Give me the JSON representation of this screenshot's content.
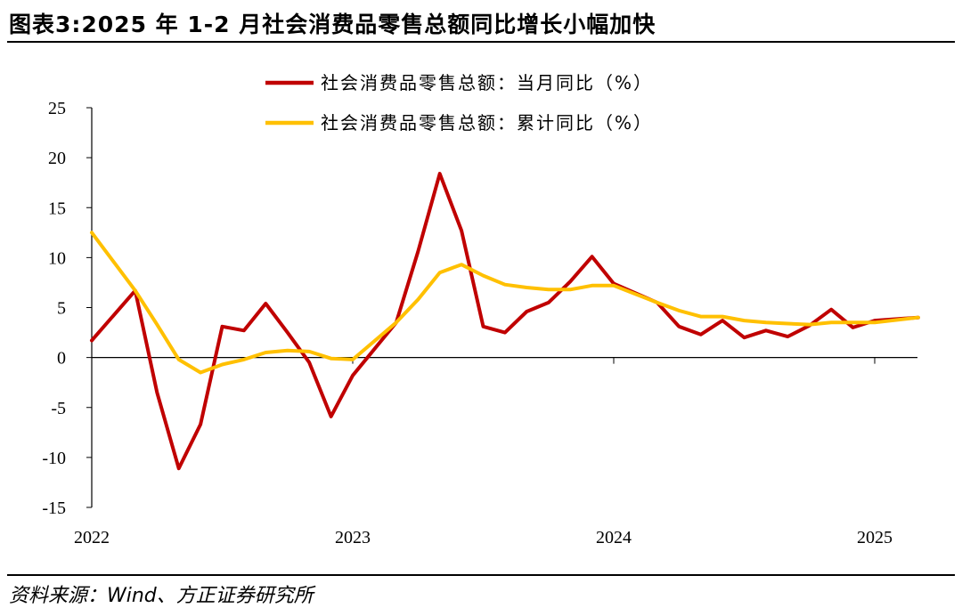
{
  "figure": {
    "title": "图表3:2025 年 1-2 月社会消费品零售总额同比增长小幅加快",
    "source": "资料来源：Wind、方正证券研究所"
  },
  "chart_data": {
    "type": "line",
    "title": "",
    "xlabel": "",
    "ylabel": "",
    "ylim": [
      -15,
      25
    ],
    "yticks": [
      25,
      20,
      15,
      10,
      5,
      0,
      -5,
      -10,
      -15
    ],
    "xticks": [
      "2022",
      "2023",
      "2024",
      "2025"
    ],
    "grid": false,
    "legend_position": "top-center",
    "x": [
      "2022-01",
      "2022-03",
      "2022-04",
      "2022-05",
      "2022-06",
      "2022-07",
      "2022-08",
      "2022-09",
      "2022-10",
      "2022-11",
      "2022-12",
      "2023-01",
      "2023-03",
      "2023-04",
      "2023-05",
      "2023-06",
      "2023-07",
      "2023-08",
      "2023-09",
      "2023-10",
      "2023-11",
      "2023-12",
      "2024-01",
      "2024-03",
      "2024-04",
      "2024-05",
      "2024-06",
      "2024-07",
      "2024-08",
      "2024-09",
      "2024-10",
      "2024-11",
      "2024-12",
      "2025-01",
      "2025-03"
    ],
    "series": [
      {
        "name": "社会消费品零售总额：当月同比（%）",
        "color": "#c00000",
        "values": [
          1.7,
          6.7,
          -3.5,
          -11.1,
          -6.7,
          3.1,
          2.7,
          5.4,
          2.5,
          -0.5,
          -5.9,
          -1.8,
          3.5,
          10.6,
          18.4,
          12.7,
          3.1,
          2.5,
          4.6,
          5.5,
          7.6,
          10.1,
          7.4,
          5.5,
          3.1,
          2.3,
          3.7,
          2.0,
          2.7,
          2.1,
          3.2,
          4.8,
          3.0,
          3.7,
          4.0
        ]
      },
      {
        "name": "社会消费品零售总额：累计同比（%）",
        "color": "#ffc000",
        "values": [
          12.5,
          6.7,
          3.3,
          -0.2,
          -1.5,
          -0.7,
          -0.2,
          0.5,
          0.7,
          0.6,
          -0.1,
          -0.2,
          3.5,
          5.8,
          8.5,
          9.3,
          8.2,
          7.3,
          7.0,
          6.8,
          6.8,
          7.2,
          7.2,
          5.5,
          4.7,
          4.1,
          4.1,
          3.7,
          3.5,
          3.4,
          3.3,
          3.5,
          3.5,
          3.5,
          4.0
        ]
      }
    ]
  }
}
